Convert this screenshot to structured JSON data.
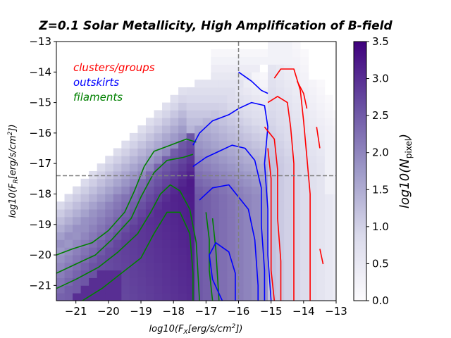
{
  "chart_data": {
    "type": "heatmap",
    "title": "Z=0.1 Solar Metallicity,   High Amplification of B-field",
    "xlabel": "log10(F_X[erg/s/cm^2])",
    "ylabel": "log10(F_R[erg/s/cm^2])",
    "xlim": [
      -21.6,
      -13
    ],
    "ylim": [
      -21.5,
      -13
    ],
    "x_ticks": [
      -21,
      -20,
      -19,
      -18,
      -17,
      -16,
      -15,
      -14,
      -13
    ],
    "y_ticks": [
      -21,
      -20,
      -19,
      -18,
      -17,
      -16,
      -15,
      -14,
      -13
    ],
    "x_tick_labels": [
      "−21",
      "−20",
      "−19",
      "−18",
      "−17",
      "−16",
      "−15",
      "−14",
      "−13"
    ],
    "y_tick_labels": [
      "−21",
      "−20",
      "−19",
      "−18",
      "−17",
      "−16",
      "−15",
      "−14",
      "−13"
    ],
    "threshold_lines": {
      "x": -16,
      "y": -17.4
    },
    "colorbar": {
      "label": "log10(N_pixel)",
      "range": [
        0,
        3.5
      ],
      "ticks": [
        0.0,
        0.5,
        1.0,
        1.5,
        2.0,
        2.5,
        3.0,
        3.5
      ],
      "tick_labels": [
        "0.0",
        "0.5",
        "1.0",
        "1.5",
        "2.0",
        "2.5",
        "3.0",
        "3.5"
      ],
      "colormap": "Purples",
      "color_low": "#fcfbfd",
      "color_high": "#3f007d"
    },
    "legend": [
      {
        "label": "clusters/groups",
        "color": "#ff0000"
      },
      {
        "label": "outskirts",
        "color": "#0000ff"
      },
      {
        "label": "filaments",
        "color": "#008000"
      }
    ],
    "series": [
      {
        "name": "filaments",
        "color": "#008000",
        "contours": [
          [
            [
              -21.6,
              -20.0
            ],
            [
              -21.1,
              -19.8
            ],
            [
              -20.5,
              -19.6
            ],
            [
              -20.0,
              -19.2
            ],
            [
              -19.5,
              -18.6
            ],
            [
              -19.2,
              -17.9
            ],
            [
              -18.9,
              -17.1
            ],
            [
              -18.6,
              -16.6
            ],
            [
              -18.1,
              -16.4
            ],
            [
              -17.6,
              -16.2
            ],
            [
              -17.3,
              -16.3
            ]
          ],
          [
            [
              -21.6,
              -20.6
            ],
            [
              -21.0,
              -20.3
            ],
            [
              -20.4,
              -20.0
            ],
            [
              -19.9,
              -19.5
            ],
            [
              -19.3,
              -18.8
            ],
            [
              -19.0,
              -18.1
            ],
            [
              -18.6,
              -17.3
            ],
            [
              -18.2,
              -16.9
            ],
            [
              -17.7,
              -16.8
            ],
            [
              -17.4,
              -16.7
            ]
          ],
          [
            [
              -21.6,
              -21.1
            ],
            [
              -21.0,
              -20.8
            ],
            [
              -20.3,
              -20.4
            ],
            [
              -19.7,
              -19.9
            ],
            [
              -19.1,
              -19.3
            ],
            [
              -18.7,
              -18.6
            ],
            [
              -18.4,
              -18.0
            ],
            [
              -18.1,
              -17.7
            ],
            [
              -17.8,
              -17.9
            ],
            [
              -17.5,
              -18.5
            ],
            [
              -17.3,
              -19.6
            ],
            [
              -17.2,
              -21.5
            ]
          ],
          [
            [
              -20.8,
              -21.5
            ],
            [
              -20.2,
              -21.1
            ],
            [
              -19.6,
              -20.6
            ],
            [
              -19.0,
              -20.1
            ],
            [
              -18.6,
              -19.3
            ],
            [
              -18.2,
              -18.6
            ],
            [
              -17.8,
              -18.6
            ],
            [
              -17.5,
              -19.3
            ],
            [
              -17.4,
              -20.6
            ],
            [
              -17.4,
              -21.5
            ]
          ],
          [
            [
              -17.0,
              -18.6
            ],
            [
              -16.9,
              -19.5
            ],
            [
              -16.9,
              -20.5
            ],
            [
              -16.8,
              -21.5
            ]
          ],
          [
            [
              -16.8,
              -18.8
            ],
            [
              -16.7,
              -19.8
            ],
            [
              -16.6,
              -21.5
            ]
          ]
        ]
      },
      {
        "name": "outskirts",
        "color": "#0000ff",
        "contours": [
          [
            [
              -17.4,
              -16.4
            ],
            [
              -17.2,
              -16.0
            ],
            [
              -16.8,
              -15.6
            ],
            [
              -16.3,
              -15.4
            ],
            [
              -16.0,
              -15.2
            ],
            [
              -15.6,
              -15.0
            ],
            [
              -15.2,
              -15.1
            ],
            [
              -15.1,
              -15.8
            ],
            [
              -15.2,
              -17.0
            ],
            [
              -15.1,
              -18.5
            ],
            [
              -15.1,
              -20.0
            ],
            [
              -15.0,
              -21.5
            ]
          ],
          [
            [
              -17.4,
              -17.1
            ],
            [
              -17.0,
              -16.8
            ],
            [
              -16.6,
              -16.6
            ],
            [
              -16.2,
              -16.4
            ],
            [
              -15.8,
              -16.5
            ],
            [
              -15.5,
              -16.9
            ],
            [
              -15.3,
              -17.8
            ],
            [
              -15.3,
              -19.0
            ],
            [
              -15.2,
              -20.5
            ],
            [
              -15.2,
              -21.5
            ]
          ],
          [
            [
              -17.2,
              -18.2
            ],
            [
              -16.8,
              -17.8
            ],
            [
              -16.3,
              -17.7
            ],
            [
              -16.0,
              -18.1
            ],
            [
              -15.7,
              -18.5
            ],
            [
              -15.5,
              -19.5
            ],
            [
              -15.4,
              -21.0
            ],
            [
              -15.4,
              -21.5
            ]
          ],
          [
            [
              -16.5,
              -21.5
            ],
            [
              -16.8,
              -20.8
            ],
            [
              -16.9,
              -20.0
            ],
            [
              -16.7,
              -19.6
            ],
            [
              -16.3,
              -19.9
            ],
            [
              -16.1,
              -20.6
            ],
            [
              -16.1,
              -21.5
            ]
          ],
          [
            [
              -16.0,
              -14.0
            ],
            [
              -15.6,
              -14.3
            ],
            [
              -15.3,
              -14.6
            ],
            [
              -15.1,
              -14.7
            ]
          ]
        ]
      },
      {
        "name": "clusters/groups",
        "color": "#ff0000",
        "contours": [
          [
            [
              -14.9,
              -14.2
            ],
            [
              -14.7,
              -13.9
            ],
            [
              -14.3,
              -13.9
            ],
            [
              -14.1,
              -14.6
            ],
            [
              -14.0,
              -15.6
            ],
            [
              -13.9,
              -16.8
            ],
            [
              -13.8,
              -18.0
            ],
            [
              -13.8,
              -19.2
            ],
            [
              -13.8,
              -20.5
            ],
            [
              -13.8,
              -21.5
            ]
          ],
          [
            [
              -15.1,
              -15.0
            ],
            [
              -14.8,
              -14.8
            ],
            [
              -14.5,
              -15.0
            ],
            [
              -14.4,
              -15.8
            ],
            [
              -14.3,
              -17.0
            ],
            [
              -14.3,
              -18.5
            ],
            [
              -14.3,
              -20.0
            ],
            [
              -14.3,
              -21.5
            ]
          ],
          [
            [
              -15.2,
              -15.8
            ],
            [
              -14.9,
              -16.2
            ],
            [
              -14.8,
              -17.2
            ],
            [
              -14.8,
              -18.8
            ],
            [
              -14.7,
              -20.2
            ],
            [
              -14.7,
              -21.5
            ]
          ],
          [
            [
              -15.1,
              -16.5
            ],
            [
              -15.0,
              -17.5
            ],
            [
              -15.0,
              -19.0
            ],
            [
              -15.0,
              -20.5
            ],
            [
              -14.9,
              -21.5
            ]
          ],
          [
            [
              -14.2,
              -14.3
            ],
            [
              -14.0,
              -14.7
            ],
            [
              -13.9,
              -15.2
            ]
          ],
          [
            [
              -13.6,
              -15.8
            ],
            [
              -13.5,
              -16.5
            ]
          ],
          [
            [
              -13.5,
              -19.8
            ],
            [
              -13.4,
              -20.3
            ]
          ]
        ]
      }
    ]
  }
}
